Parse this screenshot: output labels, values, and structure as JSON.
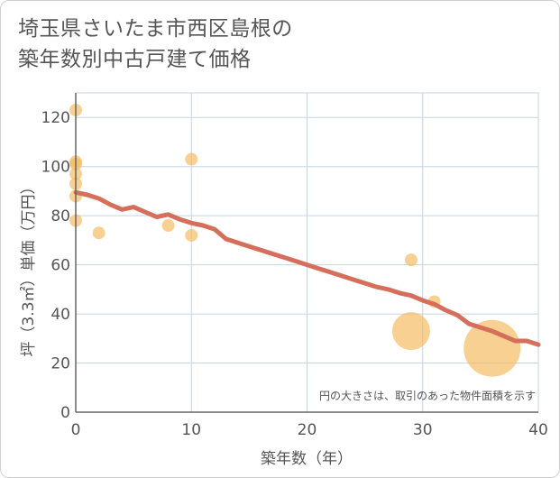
{
  "title_line1": "埼玉県さいたま市西区島根の",
  "title_line2": "築年数別中古戸建て価格",
  "chart_data": {
    "type": "scatter",
    "title": "埼玉県さいたま市西区島根の築年数別中古戸建て価格",
    "xlabel": "築年数（年）",
    "ylabel": "坪（3.3㎡）単価（万円）",
    "xlim": [
      0,
      40
    ],
    "ylim": [
      0,
      130
    ],
    "xticks": [
      0,
      10,
      20,
      30,
      40
    ],
    "yticks": [
      0,
      20,
      40,
      60,
      80,
      100,
      120
    ],
    "grid": true,
    "note": "円の大きさは、取引のあった物件面積を示す",
    "points": [
      {
        "x": 0,
        "y": 123,
        "size": 1
      },
      {
        "x": 0,
        "y": 102,
        "size": 1
      },
      {
        "x": 0,
        "y": 101,
        "size": 1
      },
      {
        "x": 0,
        "y": 97,
        "size": 1
      },
      {
        "x": 0,
        "y": 93,
        "size": 1
      },
      {
        "x": 0,
        "y": 88,
        "size": 1
      },
      {
        "x": 0,
        "y": 78,
        "size": 1
      },
      {
        "x": 2,
        "y": 73,
        "size": 1
      },
      {
        "x": 8,
        "y": 76,
        "size": 1
      },
      {
        "x": 10,
        "y": 103,
        "size": 1
      },
      {
        "x": 10,
        "y": 72,
        "size": 1
      },
      {
        "x": 29,
        "y": 62,
        "size": 1
      },
      {
        "x": 31,
        "y": 45,
        "size": 1
      },
      {
        "x": 29,
        "y": 33,
        "size": 3
      },
      {
        "x": 36,
        "y": 26,
        "size": 4.5
      }
    ],
    "trend": {
      "x": [
        0,
        1,
        2,
        3,
        4,
        5,
        6,
        7,
        8,
        9,
        10,
        11,
        12,
        13,
        14,
        15,
        16,
        17,
        18,
        19,
        20,
        21,
        22,
        23,
        24,
        25,
        26,
        27,
        28,
        29,
        30,
        31,
        32,
        33,
        34,
        35,
        36,
        37,
        38,
        39,
        40
      ],
      "y": [
        89.5,
        88.5,
        87,
        84.5,
        82.5,
        83.5,
        81.5,
        79.5,
        80.5,
        78.5,
        77,
        76,
        74.5,
        70.5,
        69,
        67.5,
        66,
        64.5,
        63,
        61.5,
        60,
        58.5,
        57,
        55.5,
        54,
        52.5,
        51,
        50,
        48.5,
        47.5,
        45.5,
        44,
        41.5,
        39.5,
        36,
        34.5,
        33,
        31,
        29,
        29,
        27.5
      ]
    },
    "colors": {
      "bubble": "#f5b95e",
      "trend": "#d56f5b",
      "grid": "#c5d4e0",
      "axis": "#666666"
    }
  }
}
